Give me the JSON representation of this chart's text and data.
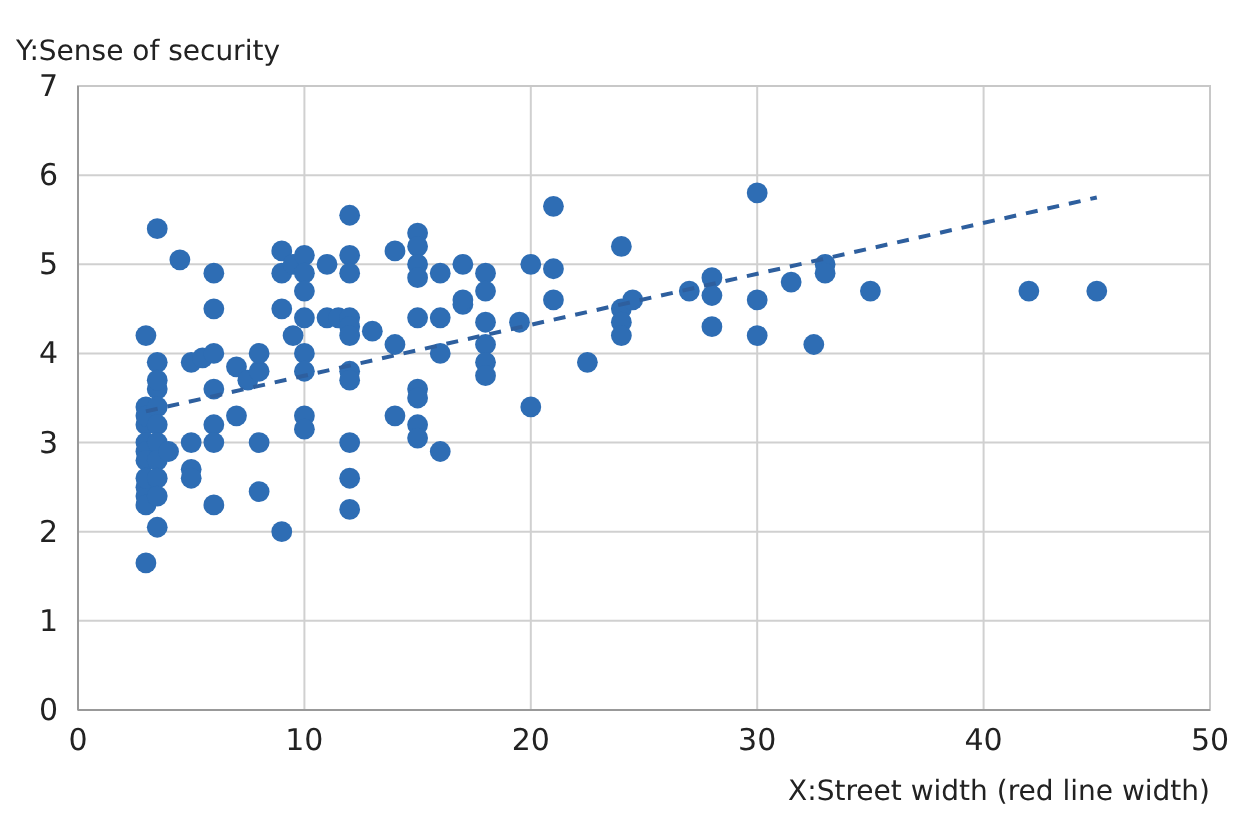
{
  "chart_data": {
    "type": "scatter",
    "xlabel": "X:Street width (red line width)",
    "ylabel": "Y:Sense of security",
    "xlim": [
      0,
      50
    ],
    "ylim": [
      0,
      7
    ],
    "xticks": [
      0,
      10,
      20,
      30,
      40,
      50
    ],
    "yticks": [
      0,
      1,
      2,
      3,
      4,
      5,
      6,
      7
    ],
    "grid": true,
    "series": [
      {
        "color": "#2e6db4",
        "marker": "circle",
        "x": [
          3,
          3,
          3,
          3,
          3,
          3,
          3,
          3,
          3,
          3,
          3,
          3,
          3.5,
          3.5,
          3.5,
          3.5,
          3.5,
          3.5,
          3.5,
          3.5,
          3.5,
          3.5,
          3.5,
          4,
          4.5,
          5,
          5,
          5,
          5,
          5.5,
          6,
          6,
          6,
          6,
          6,
          6,
          6,
          7,
          7,
          7.5,
          8,
          8,
          8,
          8,
          9,
          9,
          9,
          9,
          9.5,
          9.5,
          10,
          10,
          10,
          10,
          10,
          10,
          10,
          10,
          11,
          11,
          11.5,
          12,
          12,
          12,
          12,
          12,
          12,
          12,
          12,
          12,
          12,
          12,
          13,
          14,
          14,
          14,
          15,
          15,
          15,
          15,
          15,
          15,
          15,
          15,
          15,
          16,
          16,
          16,
          16,
          17,
          17,
          17,
          18,
          18,
          18,
          18,
          18,
          18,
          19.5,
          20,
          20,
          21,
          21,
          21,
          22.5,
          24,
          24,
          24,
          24,
          24.5,
          27,
          28,
          28,
          28,
          30,
          30,
          30,
          31.5,
          32.5,
          33,
          33,
          35,
          42,
          45
        ],
        "values": [
          4.2,
          3.4,
          3.2,
          3,
          2.9,
          2.8,
          2.5,
          2.4,
          2.3,
          1.65,
          3.3,
          2.6,
          5.4,
          3.9,
          3.6,
          3.4,
          3.2,
          3,
          2.8,
          2.6,
          2.4,
          2.05,
          3.7,
          2.9,
          5.05,
          3,
          2.7,
          2.6,
          3.9,
          3.95,
          4.9,
          4.5,
          4,
          3.6,
          3.2,
          3,
          2.3,
          3.85,
          3.3,
          3.7,
          3.8,
          3,
          2.45,
          4,
          2,
          4.9,
          5.15,
          4.5,
          5,
          4.2,
          5.1,
          4.9,
          4.7,
          4.4,
          4,
          3.8,
          3.3,
          3.15,
          4.4,
          5,
          4.4,
          5.55,
          5.1,
          4.9,
          4.4,
          4.3,
          4.2,
          3.8,
          3.7,
          3,
          2.6,
          2.25,
          4.25,
          5.15,
          3.3,
          4.1,
          5.35,
          5.2,
          5,
          4.85,
          4.4,
          3.6,
          3.5,
          3.2,
          3.05,
          4.9,
          4.4,
          4,
          2.9,
          5,
          4.55,
          4.6,
          4.9,
          4.7,
          4.35,
          4.1,
          3.9,
          3.75,
          4.35,
          5,
          3.4,
          5.65,
          4.95,
          4.6,
          3.9,
          5.2,
          4.5,
          4.35,
          4.2,
          4.6,
          4.7,
          4.85,
          4.65,
          4.3,
          5.8,
          4.6,
          4.2,
          4.8,
          4.1,
          5,
          4.9,
          4.7,
          4.7,
          4.7
        ]
      },
      {
        "type": "line",
        "color": "#2e5f9e",
        "line_style": "dashed",
        "marker": "none",
        "x": [
          3,
          45
        ],
        "values": [
          3.35,
          5.75
        ]
      }
    ]
  }
}
